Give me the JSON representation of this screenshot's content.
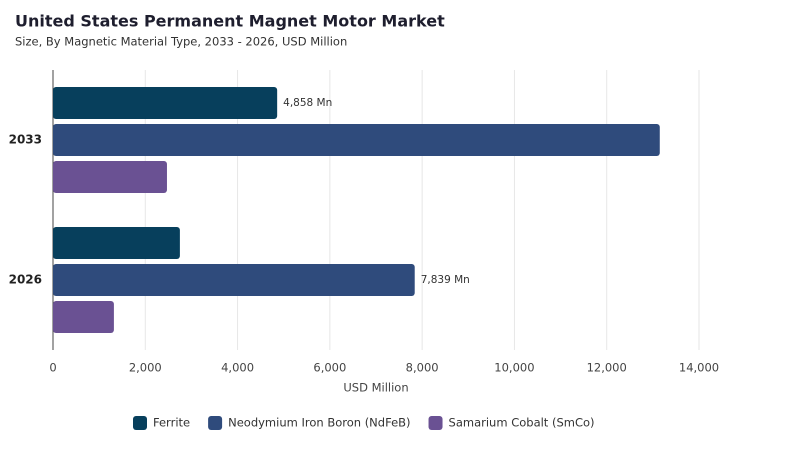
{
  "chart_data": {
    "type": "hbar",
    "title": "United States Permanent Magnet Motor Market",
    "subtitle": "Size, By Magnetic Material Type, 2033 - 2026, USD Million",
    "x_label": "USD Million",
    "categories": [
      "2033",
      "2026"
    ],
    "series": [
      {
        "name": "Ferrite",
        "color": "#073f5c",
        "values": [
          4858,
          2750
        ],
        "value_labels": [
          "4,858 Mn",
          null
        ]
      },
      {
        "name": "Neodymium Iron Boron (NdFeB)",
        "color": "#2f4b7c",
        "values": [
          13150,
          7839
        ],
        "value_labels": [
          null,
          "7,839 Mn"
        ]
      },
      {
        "name": "Samarium Cobalt (SmCo)",
        "color": "#6a5193",
        "values": [
          2470,
          1320
        ],
        "value_labels": [
          null,
          null
        ]
      }
    ],
    "xlim": [
      0,
      14000
    ],
    "xticks": [
      0,
      {
        "value": 2000,
        "label": "2,000"
      },
      {
        "value": 4000,
        "label": "4,000"
      },
      {
        "value": 6000,
        "label": "6,000"
      },
      {
        "value": 8000,
        "label": "8,000"
      },
      {
        "value": 10000,
        "label": "10,000"
      },
      {
        "value": 12000,
        "label": "12,000"
      },
      {
        "value": 14000,
        "label": "14,000"
      }
    ],
    "grid": true
  }
}
